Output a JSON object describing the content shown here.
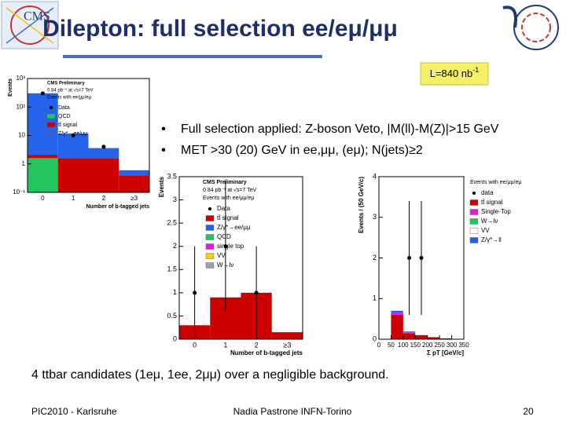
{
  "header": {
    "title": "Dilepton: full selection ee/eμ/μμ"
  },
  "luminosity": {
    "text": "L=840 nb",
    "sup": "-1"
  },
  "bullets": [
    "Full selection applied: Z-boson Veto, |M(ll)-M(Z)|>15 GeV",
    "MET >30 (20) GeV in ee,μμ, (eμ); N(jets)≥2"
  ],
  "conclusion": "4 ttbar candidates (1eμ, 1ee, 2μμ) over a negligible background.",
  "footer": {
    "left": "PIC2010 - Karlsruhe",
    "center": "Nadia Pastrone   INFN-Torino",
    "page": "20"
  },
  "chart_data": [
    {
      "type": "bar",
      "log": true,
      "title": "CMS Preliminary",
      "subtitle": "0.84 pb⁻¹ at √s=7 TeV",
      "annotation": "Events with ee/μμ/eμ",
      "x_label": "Number of b-tagged jets",
      "y_label": "Events",
      "categories": [
        "0",
        "1",
        "2",
        "≥3"
      ],
      "ylim": [
        0.1,
        1000
      ],
      "yticks": [
        {
          "value": 0.1,
          "label": "10⁻¹"
        },
        1,
        10,
        {
          "value": 100,
          "label": "10²"
        },
        {
          "value": 1000,
          "label": "10³"
        }
      ],
      "series": [
        {
          "name": "Data",
          "color": "#000000",
          "style": "points",
          "values": [
            300,
            10,
            4,
            null
          ]
        },
        {
          "name": "QCD",
          "color": "#22c55e",
          "values": [
            1.5,
            0,
            0,
            0
          ]
        },
        {
          "name": "tt̄ signal",
          "color": "#cc0000",
          "values": [
            0.5,
            1.5,
            1.5,
            0.3
          ]
        },
        {
          "name": "Z/γ*→ee/μμ",
          "color": "#2563eb",
          "values": [
            300,
            10,
            2,
            0.2
          ]
        }
      ]
    },
    {
      "type": "bar",
      "title": "CMS Preliminary",
      "subtitle": "0.84 pb⁻¹ at √s=7 TeV",
      "annotation": "Events with ee/μμ/eμ",
      "x_label": "Number of b-tagged jets",
      "y_label": "Events",
      "categories": [
        "0",
        "1",
        "2",
        "≥3"
      ],
      "ylim": [
        0,
        3.5
      ],
      "yticks": [
        0,
        0.5,
        1,
        1.5,
        2,
        2.5,
        3,
        3.5
      ],
      "series": [
        {
          "name": "Data",
          "color": "#000000",
          "style": "points",
          "values": [
            1,
            2,
            1,
            null
          ],
          "errors": [
            1,
            1.4,
            1,
            null
          ]
        },
        {
          "name": "tt̄ signal",
          "color": "#cc0000",
          "values": [
            0.3,
            0.9,
            1.0,
            0.15
          ]
        },
        {
          "name": "Z/γ*→ee/μμ",
          "color": "#2563eb",
          "values": [
            0,
            0,
            0,
            0
          ]
        },
        {
          "name": "QCD",
          "color": "#22c55e",
          "values": [
            0,
            0,
            0,
            0
          ]
        },
        {
          "name": "single top",
          "color": "#e11de1",
          "values": [
            0,
            0,
            0,
            0
          ]
        },
        {
          "name": "VV",
          "color": "#facc15",
          "values": [
            0,
            0,
            0,
            0
          ]
        },
        {
          "name": "W→lν",
          "color": "#9ca3af",
          "values": [
            0,
            0,
            0,
            0
          ]
        }
      ]
    },
    {
      "type": "histogram",
      "annotation": "Events with ee/μμ/eμ",
      "x_label": "Σ pT [GeV/c]",
      "y_label": "Events / (50 GeV/c)",
      "bins": [
        0,
        50,
        100,
        150,
        200,
        250,
        300,
        350
      ],
      "xlim": [
        0,
        350
      ],
      "xticks": [
        0,
        50,
        100,
        150,
        200,
        250,
        300,
        350
      ],
      "ylim": [
        0,
        4
      ],
      "yticks": [
        0,
        1,
        2,
        3,
        4
      ],
      "series": [
        {
          "name": "data",
          "color": "#000000",
          "style": "points",
          "x": [
            125,
            175
          ],
          "values": [
            2,
            2
          ],
          "errors": [
            1.4,
            1.4
          ]
        },
        {
          "name": "tt̄ signal",
          "color": "#cc0000",
          "values": [
            0,
            0.6,
            0.15,
            0.1,
            0.05,
            0.02,
            0
          ]
        },
        {
          "name": "Single-Top",
          "color": "#e11de1",
          "values": [
            0,
            0.05,
            0.02,
            0,
            0,
            0,
            0
          ]
        },
        {
          "name": "W→lν",
          "color": "#22c55e",
          "values": [
            0,
            0,
            0,
            0,
            0,
            0,
            0
          ]
        },
        {
          "name": "VV",
          "color": "#ffffff",
          "values": [
            0,
            0,
            0,
            0,
            0,
            0,
            0
          ]
        },
        {
          "name": "Z/γ*→ll",
          "color": "#2563eb",
          "values": [
            0,
            0.05,
            0.02,
            0,
            0,
            0,
            0
          ]
        }
      ]
    }
  ]
}
